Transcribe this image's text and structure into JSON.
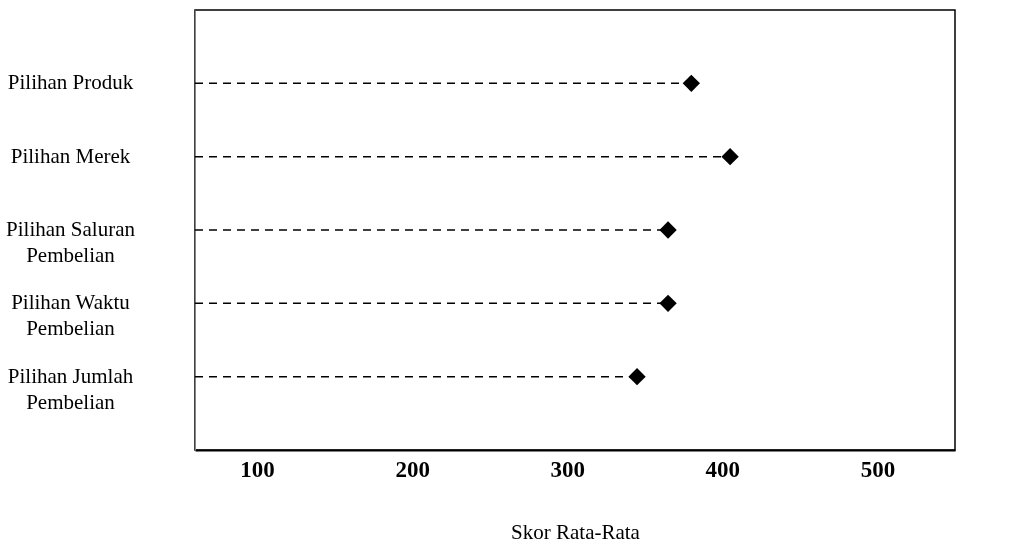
{
  "chart_data": {
    "type": "lollipop",
    "categories": [
      "Pilihan Produk",
      "Pilihan Merek",
      "Pilihan Saluran Pembelian",
      "Pilihan Waktu Pembelian",
      "Pilihan Jumlah Pembelian"
    ],
    "values": [
      380,
      405,
      365,
      365,
      345
    ],
    "color": "#000000",
    "marker": "diamond",
    "line_style": "dashed",
    "orientation": "horizontal",
    "xlabel": "Skor Rata-Rata",
    "xlim": [
      60,
      550
    ],
    "xticks": [
      100,
      200,
      300,
      400,
      500
    ]
  }
}
